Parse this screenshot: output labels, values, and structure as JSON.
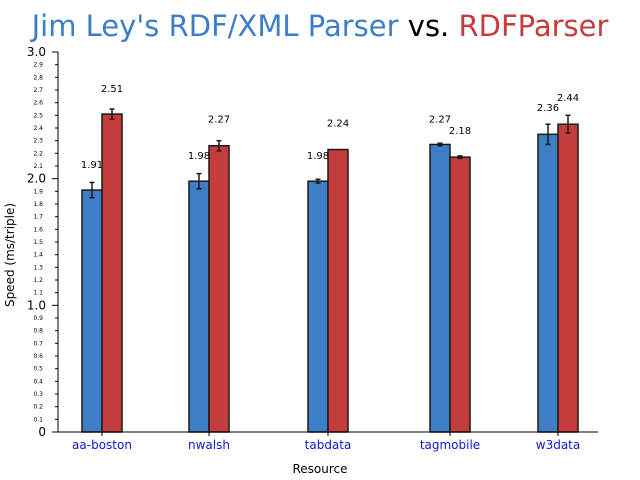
{
  "colors": {
    "blue": "#3d7ec6",
    "red": "#c43c3c",
    "bar_edge": "#1a1a1a",
    "category_text": "#1515d0",
    "title_dark": "#000000"
  },
  "title": {
    "part1": "Jim Ley's RDF/XML Parser",
    "part2": " vs. ",
    "part3": "RDFParser"
  },
  "chart_data": {
    "type": "bar",
    "title": "Jim Ley's RDF/XML Parser vs. RDFParser",
    "xlabel": "Resource",
    "ylabel": "Speed (ms/triple)",
    "ylim": [
      0,
      3.0
    ],
    "major_ticks": [
      "0",
      "1.0",
      "2.0",
      "3.0"
    ],
    "minor_ticks": [
      "0.1",
      "0.2",
      "0.3",
      "0.4",
      "0.5",
      "0.6",
      "0.7",
      "0.8",
      "0.9",
      "1.1",
      "1.2",
      "1.3",
      "1.4",
      "1.5",
      "1.6",
      "1.7",
      "1.8",
      "1.9",
      "2.1",
      "2.2",
      "2.3",
      "2.4",
      "2.5",
      "2.6",
      "2.7",
      "2.8",
      "2.9"
    ],
    "categories": [
      "aa-boston",
      "nwalsh",
      "tabdata",
      "tagmobile",
      "w3data"
    ],
    "series": [
      {
        "name": "Jim Ley's RDF/XML Parser",
        "values": [
          1.91,
          1.98,
          1.98,
          2.27,
          2.36
        ],
        "bar_tops": [
          1.91,
          1.98,
          1.98,
          2.27,
          2.35
        ],
        "errors": [
          0.06,
          0.06,
          0.015,
          0.01,
          0.08
        ],
        "labels": [
          "1.91",
          "1.98",
          "1.98",
          "2.27",
          "2.36"
        ]
      },
      {
        "name": "RDFParser",
        "values": [
          2.51,
          2.27,
          2.24,
          2.18,
          2.44
        ],
        "bar_tops": [
          2.51,
          2.26,
          2.23,
          2.17,
          2.43
        ],
        "errors": [
          0.04,
          0.04,
          0.0,
          0.01,
          0.07
        ],
        "labels": [
          "2.51",
          "2.27",
          "2.24",
          "2.18",
          "2.44"
        ]
      }
    ],
    "grid": false,
    "legend": "none"
  }
}
